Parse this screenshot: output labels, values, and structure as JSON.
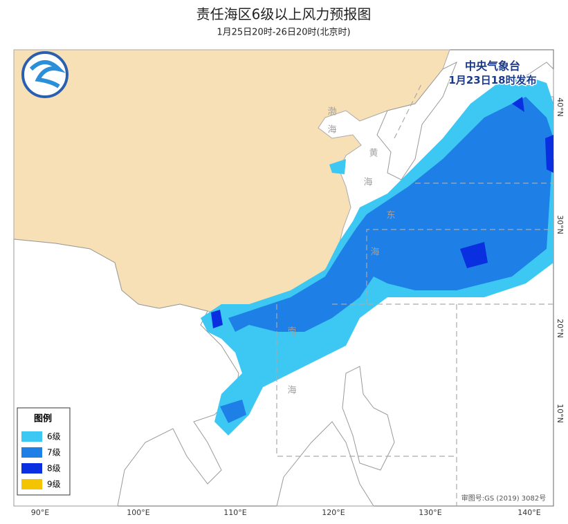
{
  "header": {
    "title": "责任海区6级以上风力预报图",
    "subtitle": "1月25日20时-26日20时(北京时)"
  },
  "issuer": {
    "agency": "中央气象台",
    "issued": "1月23日18时发布"
  },
  "legend": {
    "title": "图例",
    "items": [
      {
        "label": "6级",
        "color": "#3cc8f2"
      },
      {
        "label": "7级",
        "color": "#1e7fe6"
      },
      {
        "label": "8级",
        "color": "#0a2fe0"
      },
      {
        "label": "9级",
        "color": "#f5c400"
      }
    ]
  },
  "sea_labels": [
    "渤",
    "海",
    "黄",
    "海",
    "东",
    "海",
    "南",
    "海"
  ],
  "axes": {
    "longitude": [
      "90°E",
      "100°E",
      "110°E",
      "120°E",
      "130°E",
      "140°E"
    ],
    "latitude": [
      "40°N",
      "30°N",
      "20°N",
      "10°N"
    ]
  },
  "review_number": "审图号:GS (2019) 3082号"
}
